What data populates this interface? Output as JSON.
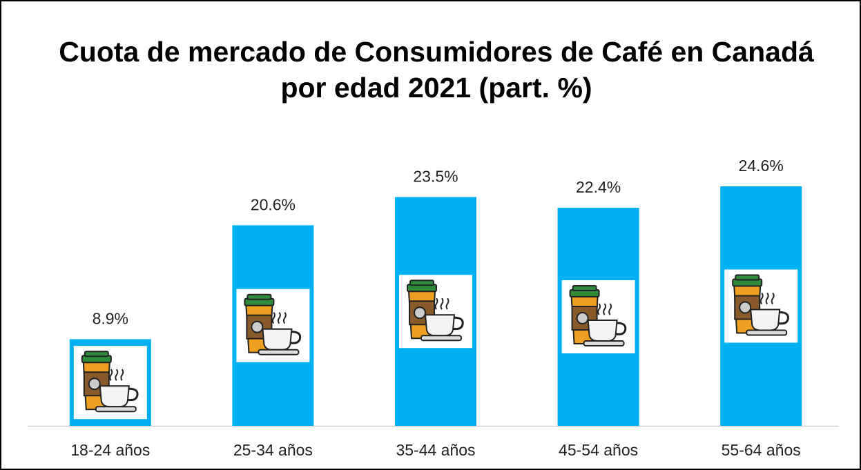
{
  "chart_data": {
    "type": "bar",
    "title": "Cuota de mercado de Consumidores de Café en Canadá por edad 2021 (part. %)",
    "categories": [
      "18-24 años",
      "25-34 años",
      "35-44 años",
      "45-54 años",
      "55-64 años"
    ],
    "values": [
      8.9,
      20.6,
      23.5,
      22.4,
      24.6
    ],
    "value_labels": [
      "8.9%",
      "20.6%",
      "23.5%",
      "22.4%",
      "24.6%"
    ],
    "color": "#00b0f0"
  }
}
